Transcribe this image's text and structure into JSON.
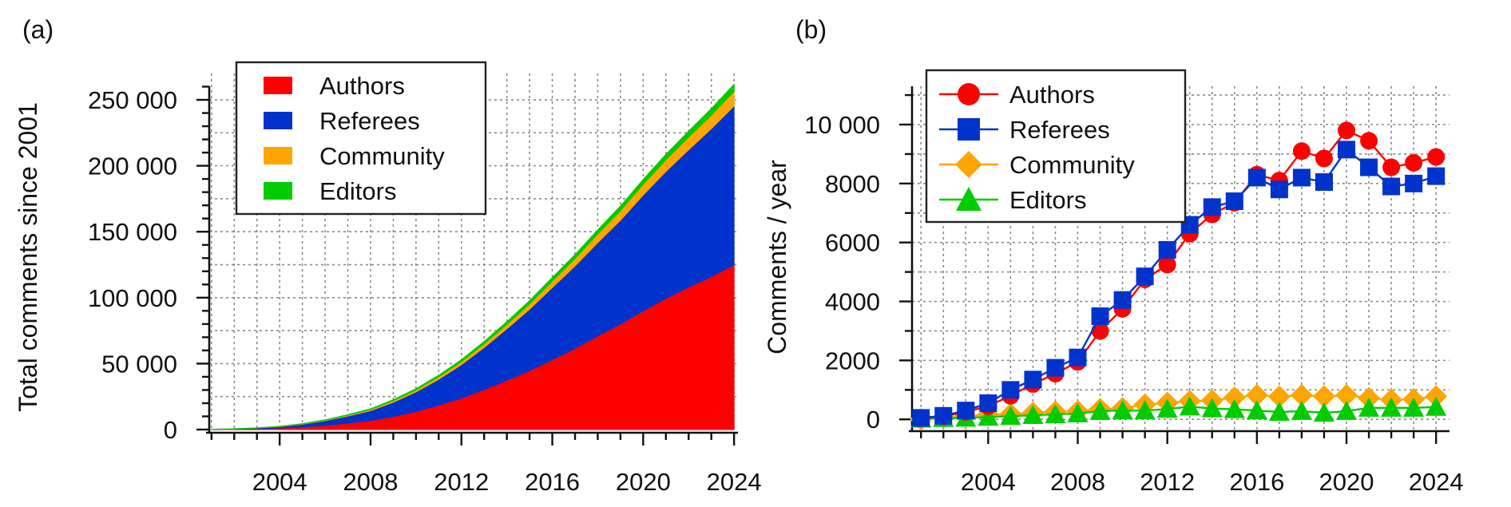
{
  "panel_a": {
    "label": "(a)",
    "legend": [
      "Authors",
      "Referees",
      "Community",
      "Editors"
    ]
  },
  "panel_b": {
    "label": "(b)",
    "legend": [
      "Authors",
      "Referees",
      "Community",
      "Editors"
    ]
  },
  "colors": {
    "authors": "#ff0000",
    "referees": "#0033cc",
    "community": "#ffa500",
    "editors": "#00cc00",
    "grid": "#8a8a8a"
  },
  "chart_data": [
    {
      "type": "area",
      "stacked": true,
      "title": "",
      "xlabel": "",
      "ylabel": "Total comments since 2001",
      "x": [
        2001,
        2002,
        2003,
        2004,
        2005,
        2006,
        2007,
        2008,
        2009,
        2010,
        2011,
        2012,
        2013,
        2014,
        2015,
        2016,
        2017,
        2018,
        2019,
        2020,
        2021,
        2022,
        2023,
        2024
      ],
      "xlim": [
        2000.9,
        2024.1
      ],
      "xticks": [
        "2004",
        "2008",
        "2012",
        "2016",
        "2020",
        "2024"
      ],
      "ylim": [
        0,
        270000
      ],
      "yticks": [
        "0",
        "50 000",
        "100 000",
        "150 000",
        "200 000",
        "250 000"
      ],
      "grid": true,
      "legend_position": "top-left",
      "series": [
        {
          "name": "Authors",
          "values": [
            100,
            250,
            550,
            1100,
            1900,
            3200,
            4900,
            6900,
            9900,
            13700,
            18500,
            23800,
            30300,
            37300,
            44700,
            53000,
            61500,
            71000,
            80000,
            90000,
            99500,
            108000,
            116000,
            125000
          ]
        },
        {
          "name": "Referees",
          "values": [
            100,
            250,
            550,
            1100,
            2100,
            3500,
            5300,
            7400,
            10800,
            14800,
            19600,
            25400,
            31900,
            39100,
            46500,
            54700,
            62500,
            70700,
            78700,
            87800,
            96200,
            104100,
            112100,
            120300
          ]
        },
        {
          "name": "Community",
          "values": [
            0,
            50,
            100,
            200,
            300,
            450,
            650,
            850,
            1150,
            1500,
            1900,
            2300,
            2800,
            3300,
            4100,
            4900,
            5700,
            6500,
            7300,
            8100,
            8800,
            9600,
            10300,
            11100
          ]
        },
        {
          "name": "Editors",
          "values": [
            0,
            30,
            60,
            100,
            200,
            300,
            450,
            600,
            800,
            1000,
            1250,
            1500,
            1800,
            2100,
            2450,
            2750,
            3000,
            3250,
            3500,
            3800,
            4200,
            4600,
            5000,
            5400
          ]
        }
      ]
    },
    {
      "type": "line",
      "title": "",
      "xlabel": "",
      "ylabel": "Comments / year",
      "x": [
        2001,
        2002,
        2003,
        2004,
        2005,
        2006,
        2007,
        2008,
        2009,
        2010,
        2011,
        2012,
        2013,
        2014,
        2015,
        2016,
        2017,
        2018,
        2019,
        2020,
        2021,
        2022,
        2023,
        2024
      ],
      "xlim": [
        2000.6,
        2024.6
      ],
      "xticks": [
        "2004",
        "2008",
        "2012",
        "2016",
        "2020",
        "2024"
      ],
      "ylim": [
        -400,
        11300
      ],
      "yticks": [
        "0",
        "2000",
        "4000",
        "6000",
        "8000",
        "10 000"
      ],
      "grid": true,
      "legend_position": "top-left",
      "series": [
        {
          "name": "Authors",
          "marker": "circle",
          "values": [
            40,
            100,
            250,
            450,
            800,
            1200,
            1550,
            1950,
            3000,
            3750,
            4750,
            5250,
            6300,
            6950,
            7350,
            8300,
            8100,
            9100,
            8850,
            9800,
            9450,
            8550,
            8700,
            8900
          ]
        },
        {
          "name": "Referees",
          "marker": "square",
          "values": [
            50,
            120,
            300,
            550,
            1000,
            1350,
            1750,
            2100,
            3500,
            4050,
            4850,
            5750,
            6600,
            7200,
            7400,
            8200,
            7800,
            8200,
            8050,
            9150,
            8550,
            7900,
            8000,
            8250
          ]
        },
        {
          "name": "Community",
          "marker": "diamond",
          "values": [
            0,
            60,
            110,
            160,
            180,
            220,
            260,
            280,
            350,
            380,
            500,
            560,
            620,
            640,
            740,
            820,
            770,
            820,
            780,
            820,
            720,
            660,
            680,
            780
          ]
        },
        {
          "name": "Editors",
          "marker": "triangle",
          "values": [
            20,
            40,
            50,
            80,
            110,
            140,
            170,
            200,
            280,
            300,
            300,
            350,
            430,
            370,
            340,
            300,
            250,
            280,
            220,
            280,
            390,
            390,
            390,
            420
          ]
        }
      ]
    }
  ]
}
